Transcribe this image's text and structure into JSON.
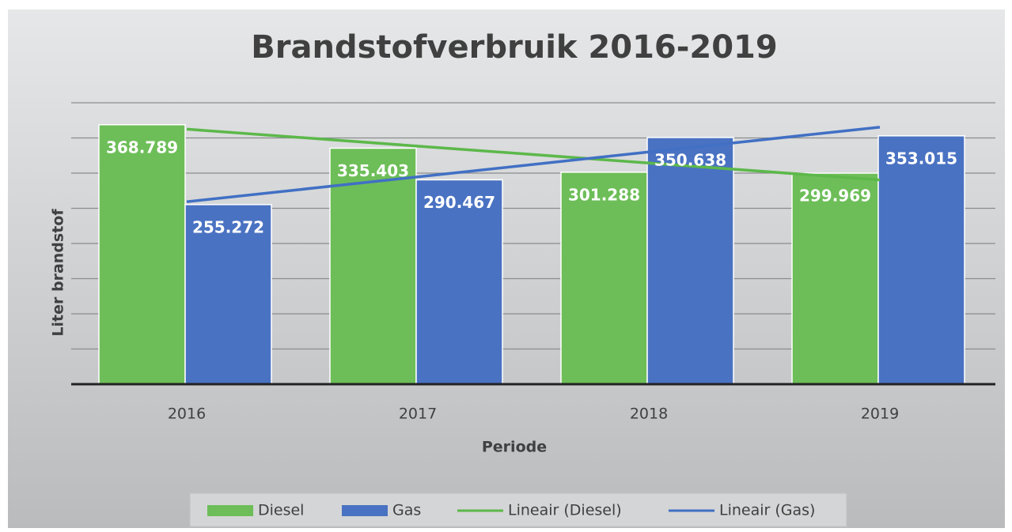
{
  "chart_data": {
    "type": "bar",
    "title": "Brandstofverbruik 2016-2019",
    "x_label": "Periode",
    "y_label": "Liter brandstof",
    "categories": [
      "2016",
      "2017",
      "2018",
      "2019"
    ],
    "series": [
      {
        "name": "Diesel",
        "color": "#6dbe58",
        "values": [
          368789,
          335403,
          301288,
          299969
        ],
        "value_labels": [
          "368.789",
          "335.403",
          "301.288",
          "299.969"
        ]
      },
      {
        "name": "Gas",
        "color": "#4a72c2",
        "values": [
          255272,
          290467,
          350638,
          353015
        ],
        "value_labels": [
          "255.272",
          "290.467",
          "350.638",
          "353.015"
        ]
      }
    ],
    "trendlines": [
      {
        "name": "Lineair (Diesel)",
        "color": "#5cb84a",
        "values": [
          362448,
          338391,
          314333,
          290276
        ]
      },
      {
        "name": "Lineair (Gas)",
        "color": "#4170c4",
        "values": [
          259338,
          294678,
          330018,
          365358
        ]
      }
    ],
    "ylim": [
      0,
      400000
    ],
    "yticks": [
      0,
      50000,
      100000,
      150000,
      200000,
      250000,
      300000,
      350000,
      400000
    ],
    "grid": true,
    "legend": "bottom"
  }
}
